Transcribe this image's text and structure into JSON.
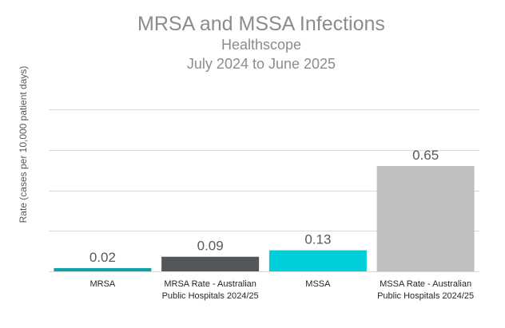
{
  "chart_data": {
    "type": "bar",
    "title": "MRSA and MSSA Infections",
    "subtitle_lines": [
      "Healthscope",
      "July 2024 to June 2025"
    ],
    "ylabel": "Rate (cases  per 10,000 patient days)",
    "xlabel": "",
    "ylim": [
      0,
      1.0
    ],
    "y_grid_step": 0.25,
    "grid": true,
    "y_tick_labels_shown": false,
    "categories": [
      [
        "MRSA"
      ],
      [
        "MRSA Rate - Australian",
        "Public Hospitals 2024/25"
      ],
      [
        "MSSA"
      ],
      [
        "MSSA Rate - Australian",
        "Public Hospitals 2024/25"
      ]
    ],
    "values": [
      0.02,
      0.09,
      0.13,
      0.65
    ],
    "data_labels": [
      "0.02",
      "0.09",
      "0.13",
      "0.65"
    ],
    "colors": [
      "#12a3a9",
      "#53575a",
      "#00ced9",
      "#bfbfbf"
    ]
  }
}
